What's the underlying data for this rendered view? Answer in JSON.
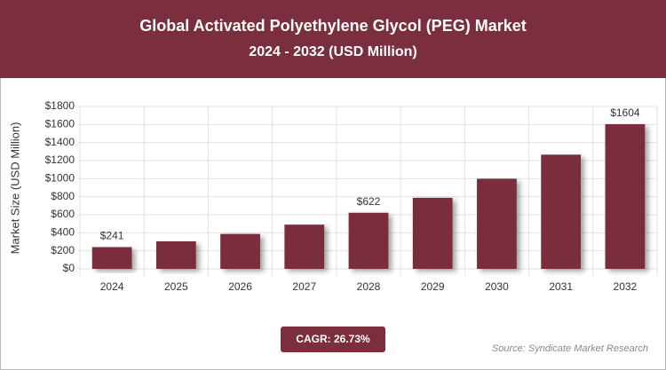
{
  "chart_data": {
    "type": "bar",
    "title": "Global Activated Polyethylene Glycol (PEG) Market",
    "subtitle": "2024 - 2032 (USD Million)",
    "y_axis_label": "Market Size (USD Million)",
    "categories": [
      "2024",
      "2025",
      "2026",
      "2027",
      "2028",
      "2029",
      "2030",
      "2031",
      "2032"
    ],
    "values": [
      241,
      305,
      387,
      490,
      622,
      788,
      999,
      1266,
      1604
    ],
    "value_labels": [
      "$241",
      null,
      null,
      null,
      "$622",
      null,
      null,
      null,
      "$1604"
    ],
    "color": "#7a2e3e",
    "ylim": [
      0,
      1800
    ],
    "yticks": [
      {
        "value": 0,
        "label": "$0"
      },
      {
        "value": 200,
        "label": "$200"
      },
      {
        "value": 400,
        "label": "$400"
      },
      {
        "value": 600,
        "label": "$600"
      },
      {
        "value": 800,
        "label": "$800"
      },
      {
        "value": 1000,
        "label": "$1000"
      },
      {
        "value": 1200,
        "label": "$1200"
      },
      {
        "value": 1400,
        "label": "$1400"
      },
      {
        "value": 1600,
        "label": "$1600"
      },
      {
        "value": 1800,
        "label": "$1800"
      }
    ],
    "grid": true,
    "cagr": "CAGR: 26.73%",
    "source": "Source: Syndicate Market Research"
  }
}
